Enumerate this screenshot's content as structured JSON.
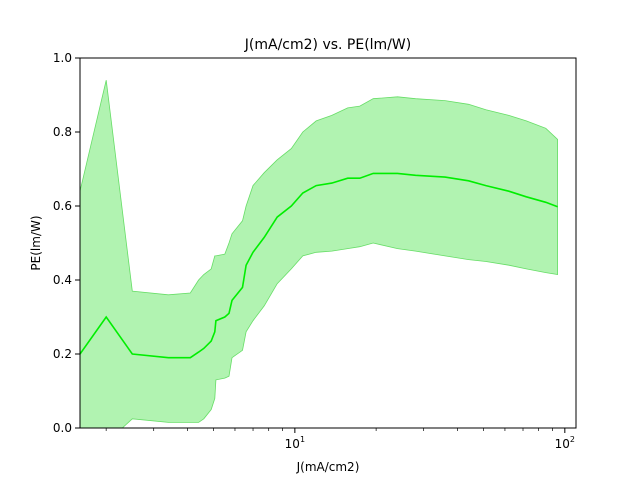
{
  "chart_data": {
    "type": "line",
    "title": "J(mA/cm2) vs. PE(lm/W)",
    "xlabel": "J(mA/cm2)",
    "ylabel": "PE(lm/W)",
    "xscale": "log",
    "xlim": [
      1.6,
      110
    ],
    "ylim": [
      0.0,
      1.0
    ],
    "xticks": [
      {
        "value": 10,
        "base": "10",
        "exp": "1"
      },
      {
        "value": 100,
        "base": "10",
        "exp": "2"
      }
    ],
    "yticks": [
      "0.0",
      "0.2",
      "0.4",
      "0.6",
      "0.8",
      "1.0"
    ],
    "line_color": "#00ee00",
    "band_color": "#90ee90",
    "band_edge_color": "#66dd66",
    "series": [
      {
        "x": [
          1.6,
          2.0,
          2.5,
          3.4,
          4.1,
          4.4,
          4.6,
          4.9,
          5.05,
          5.1,
          5.5,
          5.7,
          5.85,
          6.4,
          6.6,
          7.0,
          7.7,
          8.6,
          9.7,
          10.7,
          12.0,
          13.7,
          15.7,
          17.4,
          19.5,
          24.0,
          28.0,
          36.0,
          44.0,
          51.0,
          62.0,
          72.0,
          85.0,
          94.0
        ],
        "mean": [
          0.2,
          0.3,
          0.2,
          0.19,
          0.19,
          0.205,
          0.215,
          0.235,
          0.26,
          0.29,
          0.3,
          0.31,
          0.345,
          0.38,
          0.44,
          0.475,
          0.515,
          0.57,
          0.6,
          0.635,
          0.655,
          0.662,
          0.675,
          0.675,
          0.688,
          0.688,
          0.683,
          0.678,
          0.668,
          0.655,
          0.64,
          0.625,
          0.61,
          0.598
        ],
        "upper": [
          0.64,
          0.94,
          0.37,
          0.36,
          0.365,
          0.4,
          0.415,
          0.43,
          0.465,
          0.465,
          0.47,
          0.5,
          0.525,
          0.56,
          0.6,
          0.655,
          0.69,
          0.725,
          0.755,
          0.8,
          0.83,
          0.845,
          0.865,
          0.87,
          0.89,
          0.895,
          0.89,
          0.885,
          0.875,
          0.86,
          0.845,
          0.83,
          0.81,
          0.78
        ],
        "lower": [
          -0.04,
          -0.04,
          0.025,
          0.015,
          0.015,
          0.015,
          0.025,
          0.05,
          0.08,
          0.13,
          0.135,
          0.14,
          0.19,
          0.21,
          0.26,
          0.29,
          0.33,
          0.39,
          0.43,
          0.465,
          0.475,
          0.478,
          0.485,
          0.49,
          0.5,
          0.485,
          0.478,
          0.465,
          0.455,
          0.45,
          0.44,
          0.43,
          0.42,
          0.415
        ]
      }
    ],
    "grid": false,
    "legend": "none"
  }
}
